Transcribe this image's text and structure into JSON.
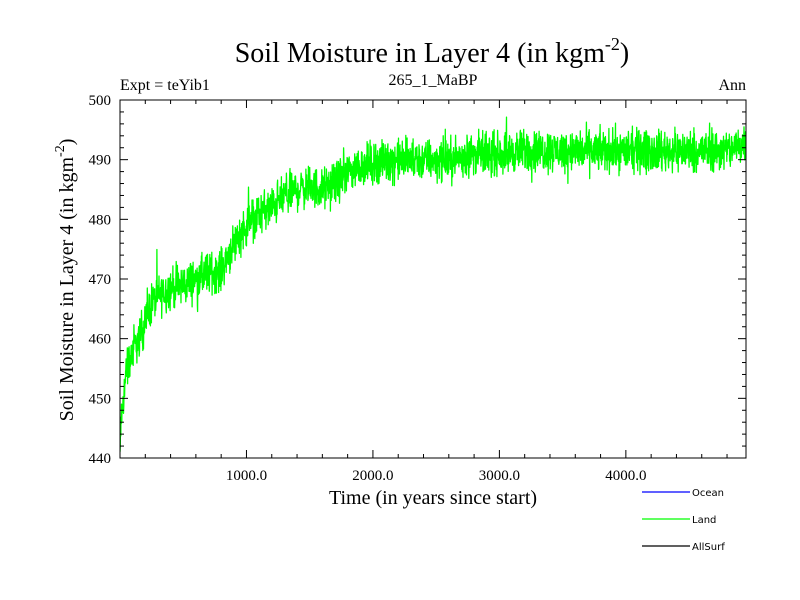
{
  "chart_data": {
    "type": "line",
    "title_main": "Soil Moisture in Layer 4 (in kgm",
    "title_sup": "-2",
    "title_close": ")",
    "subtitle_left": "Expt = teYib1",
    "subtitle_center": "265_1_MaBP",
    "subtitle_right": "Ann",
    "xlabel": "Time (in years since start)",
    "ylabel_main": "Soil Moisture in Layer 4 (in kgm",
    "ylabel_sup": "-2",
    "ylabel_close": ")",
    "xlim": [
      0,
      4950
    ],
    "ylim": [
      440,
      500
    ],
    "x_ticks": [
      1000,
      2000,
      3000,
      4000
    ],
    "x_tick_labels": [
      "1000.0",
      "2000.0",
      "3000.0",
      "4000.0"
    ],
    "y_ticks": [
      440,
      450,
      460,
      470,
      480,
      490,
      500
    ],
    "y_tick_labels": [
      "440",
      "450",
      "460",
      "470",
      "480",
      "490",
      "500"
    ],
    "series": [
      {
        "name": "Land",
        "color": "#00ff00",
        "x": [
          0,
          50,
          100,
          150,
          200,
          250,
          300,
          400,
          500,
          600,
          700,
          800,
          900,
          1000,
          1100,
          1200,
          1300,
          1400,
          1500,
          1600,
          1700,
          1800,
          1900,
          2000,
          2200,
          2400,
          2600,
          2800,
          3000,
          3200,
          3400,
          3600,
          3800,
          4000,
          4200,
          4400,
          4600,
          4800,
          4950
        ],
        "values": [
          444,
          455,
          458,
          460,
          463,
          466,
          467,
          468.5,
          469,
          470,
          471,
          471.5,
          476,
          479,
          481,
          482,
          484,
          485,
          485.5,
          485,
          486,
          488,
          489,
          489.5,
          490,
          490,
          490,
          491,
          491,
          491.5,
          491.5,
          491.5,
          491.5,
          491.5,
          491.5,
          491.5,
          491.5,
          491.5,
          493
        ],
        "noise_amplitude": 2.5
      },
      {
        "name": "Ocean",
        "color": "#0000ff",
        "x": [],
        "values": []
      },
      {
        "name": "AllSurf",
        "color": "#000000",
        "x": [],
        "values": []
      }
    ],
    "legend": {
      "position": "bottom-right",
      "entries": [
        {
          "label": "Ocean",
          "color": "#0000ff"
        },
        {
          "label": "Land",
          "color": "#00ff00"
        },
        {
          "label": "AllSurf",
          "color": "#000000"
        }
      ]
    }
  }
}
